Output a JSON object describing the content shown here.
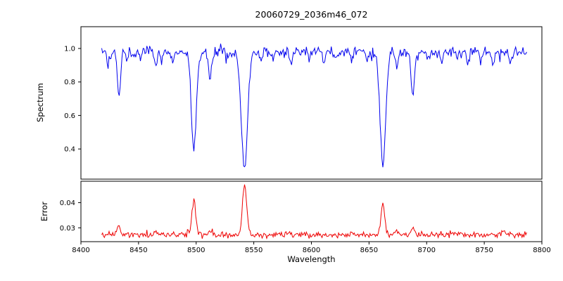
{
  "chart_data": {
    "type": "line",
    "title": "20060729_2036m46_072",
    "xlabel": "Wavelength",
    "x_range": [
      8400,
      8800
    ],
    "data_x_range": [
      8418,
      8787
    ],
    "x_tick_values": [
      8400,
      8450,
      8500,
      8550,
      8600,
      8650,
      8700,
      8750,
      8800
    ],
    "x_tick_labels": [
      "8400",
      "8450",
      "8500",
      "8550",
      "8600",
      "8650",
      "8700",
      "8750",
      "8800"
    ],
    "sample_step": 0.8,
    "noise_seed": 20060729,
    "grid": false,
    "legend": "none",
    "panels": [
      {
        "name": "spectrum",
        "ylabel": "Spectrum",
        "line_color": "#0000ee",
        "ylim": [
          0.22,
          1.13
        ],
        "ytick_values": [
          0.4,
          0.6,
          0.8,
          1.0
        ],
        "ytick_labels": [
          "0.4",
          "0.6",
          "0.8",
          "1.0"
        ],
        "continuum": 0.98,
        "noise_sigma": 0.016,
        "features_note": "absorption/emission features as [center_wavelength, amplitude, gaussian_width]; strong lines are the Ca II triplet at 8498/8542/8662",
        "features": [
          [
            8424,
            -0.06,
            1.2
          ],
          [
            8433,
            -0.26,
            1.3
          ],
          [
            8440,
            -0.05,
            1.0
          ],
          [
            8451,
            -0.05,
            1.0
          ],
          [
            8465,
            -0.09,
            1.2
          ],
          [
            8470,
            -0.06,
            1.0
          ],
          [
            8480,
            -0.05,
            1.0
          ],
          [
            8498,
            -0.57,
            2.2
          ],
          [
            8512,
            -0.15,
            1.4
          ],
          [
            8527,
            -0.05,
            1.0
          ],
          [
            8538,
            -0.05,
            1.2
          ],
          [
            8542,
            -0.71,
            2.6
          ],
          [
            8556,
            -0.05,
            1.0
          ],
          [
            8567,
            -0.04,
            1.0
          ],
          [
            8582,
            -0.07,
            1.2
          ],
          [
            8598,
            -0.06,
            1.0
          ],
          [
            8611,
            -0.07,
            1.2
          ],
          [
            8621,
            -0.05,
            1.0
          ],
          [
            8635,
            -0.04,
            1.0
          ],
          [
            8648,
            -0.05,
            1.0
          ],
          [
            8662,
            -0.67,
            2.4
          ],
          [
            8674,
            -0.09,
            1.2
          ],
          [
            8688,
            -0.26,
            1.5
          ],
          [
            8702,
            -0.04,
            1.0
          ],
          [
            8713,
            -0.06,
            1.2
          ],
          [
            8727,
            -0.04,
            1.0
          ],
          [
            8736,
            -0.06,
            1.2
          ],
          [
            8747,
            -0.04,
            1.0
          ],
          [
            8757,
            -0.07,
            1.2
          ],
          [
            8773,
            -0.06,
            1.2
          ]
        ]
      },
      {
        "name": "error",
        "ylabel": "Error",
        "line_color": "#ee0000",
        "ylim": [
          0.0245,
          0.0485
        ],
        "ytick_values": [
          0.03,
          0.04
        ],
        "ytick_labels": [
          "0.03",
          "0.04"
        ],
        "continuum": 0.0272,
        "noise_sigma": 0.00055,
        "features_note": "error spikes as [center_wavelength, amplitude, gaussian_width]",
        "features": [
          [
            8433,
            0.0035,
            1.3
          ],
          [
            8465,
            0.0012,
            1.2
          ],
          [
            8498,
            0.014,
            1.6
          ],
          [
            8512,
            0.0018,
            1.3
          ],
          [
            8542,
            0.0195,
            1.8
          ],
          [
            8582,
            0.001,
            1.2
          ],
          [
            8611,
            0.0008,
            1.2
          ],
          [
            8662,
            0.0125,
            1.5
          ],
          [
            8674,
            0.0012,
            1.2
          ],
          [
            8688,
            0.003,
            1.4
          ],
          [
            8757,
            0.001,
            1.2
          ],
          [
            8767,
            0.0014,
            1.2
          ]
        ]
      }
    ]
  }
}
